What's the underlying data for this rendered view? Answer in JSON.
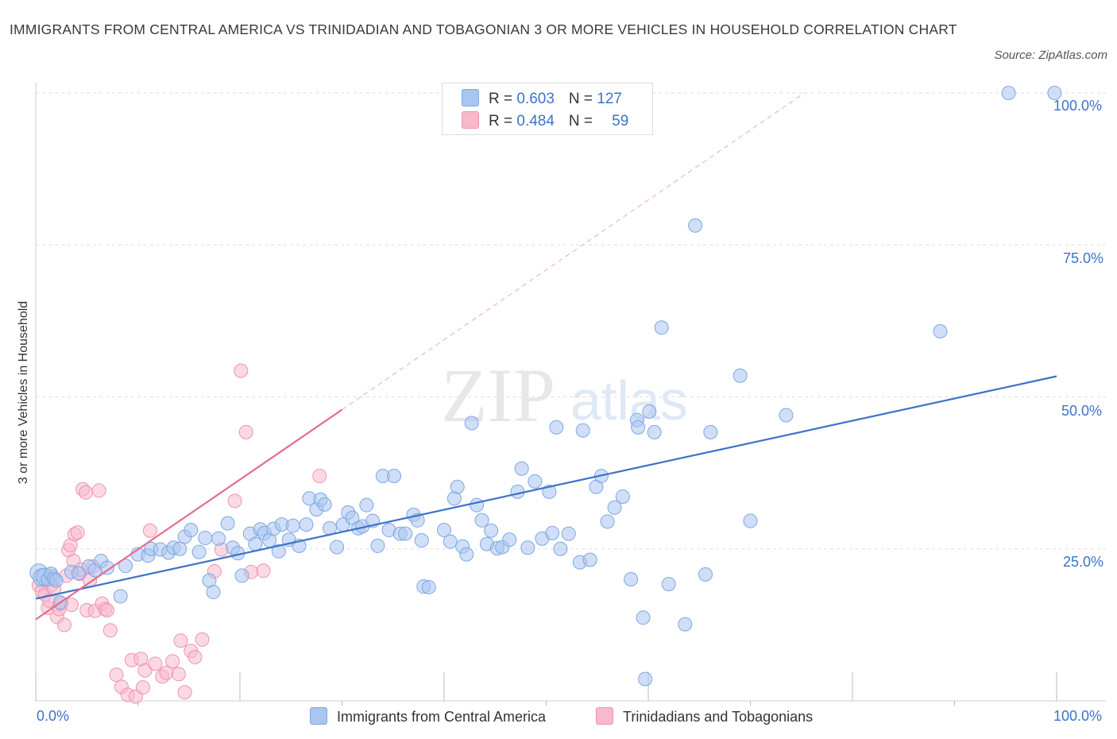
{
  "header": {
    "title": "IMMIGRANTS FROM CENTRAL AMERICA VS TRINIDADIAN AND TOBAGONIAN 3 OR MORE VEHICLES IN HOUSEHOLD CORRELATION CHART",
    "source": "Source: ZipAtlas.com"
  },
  "legend": {
    "blue": {
      "r_label": "R = ",
      "r_value": "0.603",
      "n_label": "N = ",
      "n_value": "127",
      "name": "Immigrants from Central America"
    },
    "pink": {
      "r_label": "R = ",
      "r_value": "0.484",
      "n_label": "N = ",
      "n_value": "59",
      "name": "Trinidadians and Tobagonians"
    }
  },
  "watermark": {
    "zip": "ZIP",
    "atlas": "atlas"
  },
  "colors": {
    "blue": "#3b73c8",
    "blue_fill": "#a9c5f0",
    "blue_stroke": "#7ea7e3",
    "pink": "#e26b93",
    "pink_fill": "#f7b9cc",
    "pink_stroke": "#ef93b0",
    "grid": "#dddddd",
    "axis_label": "#3b73c8"
  },
  "chart_data": {
    "type": "scatter",
    "title": "IMMIGRANTS FROM CENTRAL AMERICA VS TRINIDADIAN AND TOBAGONIAN 3 OR MORE VEHICLES IN HOUSEHOLD CORRELATION CHART",
    "xlabel": "",
    "ylabel": "3 or more Vehicles in Household",
    "xlim": [
      0,
      100
    ],
    "ylim": [
      0,
      100
    ],
    "x_tick_labels": [
      "0.0%",
      "100.0%"
    ],
    "y_tick_labels": [
      "25.0%",
      "50.0%",
      "75.0%",
      "100.0%"
    ],
    "y_ticks": [
      25,
      50,
      75,
      100
    ],
    "grid": true,
    "legend_position": "top-center",
    "series": [
      {
        "name": "Immigrants from Central America",
        "color": "#3b73c8",
        "trend": {
          "x": [
            0,
            100
          ],
          "y": [
            16.8,
            53.4
          ]
        },
        "points": [
          [
            0.3,
            21.1
          ],
          [
            0.6,
            20.3
          ],
          [
            0.9,
            20.4
          ],
          [
            1.2,
            20.0
          ],
          [
            1.5,
            20.9
          ],
          [
            1.8,
            20.1
          ],
          [
            2.0,
            19.8
          ],
          [
            2.4,
            16.2
          ],
          [
            3.5,
            21.2
          ],
          [
            4.2,
            21.0
          ],
          [
            5.2,
            22.1
          ],
          [
            5.8,
            21.5
          ],
          [
            6.4,
            23.0
          ],
          [
            7.0,
            21.9
          ],
          [
            8.8,
            22.2
          ],
          [
            8.3,
            17.2
          ],
          [
            10.0,
            24.1
          ],
          [
            11.0,
            23.9
          ],
          [
            11.3,
            25.0
          ],
          [
            12.2,
            24.9
          ],
          [
            13.0,
            24.4
          ],
          [
            13.5,
            25.2
          ],
          [
            14.1,
            25.0
          ],
          [
            14.6,
            27.0
          ],
          [
            15.2,
            28.1
          ],
          [
            16.0,
            24.5
          ],
          [
            16.6,
            26.8
          ],
          [
            17.0,
            19.8
          ],
          [
            17.4,
            17.9
          ],
          [
            17.9,
            26.7
          ],
          [
            18.8,
            29.2
          ],
          [
            19.3,
            25.2
          ],
          [
            19.8,
            24.3
          ],
          [
            20.2,
            20.6
          ],
          [
            21.0,
            27.5
          ],
          [
            21.5,
            25.8
          ],
          [
            22.0,
            28.2
          ],
          [
            22.4,
            27.6
          ],
          [
            22.9,
            26.4
          ],
          [
            23.3,
            28.3
          ],
          [
            23.8,
            24.6
          ],
          [
            24.1,
            29.0
          ],
          [
            24.8,
            26.5
          ],
          [
            25.2,
            28.8
          ],
          [
            25.8,
            25.5
          ],
          [
            26.5,
            29.0
          ],
          [
            26.8,
            33.3
          ],
          [
            27.5,
            31.5
          ],
          [
            27.9,
            33.1
          ],
          [
            28.3,
            32.3
          ],
          [
            28.8,
            28.4
          ],
          [
            29.5,
            25.3
          ],
          [
            30.1,
            29.0
          ],
          [
            30.6,
            31.0
          ],
          [
            31.0,
            30.1
          ],
          [
            31.6,
            28.4
          ],
          [
            32.0,
            28.7
          ],
          [
            32.4,
            32.2
          ],
          [
            33.0,
            29.6
          ],
          [
            33.5,
            25.5
          ],
          [
            34.0,
            37.0
          ],
          [
            34.6,
            28.1
          ],
          [
            35.1,
            37.0
          ],
          [
            35.7,
            27.5
          ],
          [
            36.2,
            27.5
          ],
          [
            37.0,
            30.6
          ],
          [
            37.4,
            29.7
          ],
          [
            37.8,
            26.4
          ],
          [
            38.0,
            18.8
          ],
          [
            38.5,
            18.7
          ],
          [
            40.0,
            28.1
          ],
          [
            40.6,
            26.2
          ],
          [
            41.0,
            33.3
          ],
          [
            41.3,
            35.2
          ],
          [
            41.8,
            25.4
          ],
          [
            42.2,
            24.1
          ],
          [
            42.7,
            45.7
          ],
          [
            43.2,
            32.2
          ],
          [
            43.7,
            29.7
          ],
          [
            44.2,
            25.8
          ],
          [
            44.6,
            28.0
          ],
          [
            45.2,
            25.1
          ],
          [
            45.7,
            25.3
          ],
          [
            46.4,
            26.5
          ],
          [
            47.2,
            34.4
          ],
          [
            47.6,
            38.2
          ],
          [
            48.2,
            25.2
          ],
          [
            48.9,
            36.1
          ],
          [
            49.6,
            26.7
          ],
          [
            50.3,
            34.4
          ],
          [
            50.6,
            27.6
          ],
          [
            51.0,
            45.0
          ],
          [
            51.4,
            25.0
          ],
          [
            52.2,
            27.5
          ],
          [
            53.3,
            22.8
          ],
          [
            53.6,
            44.5
          ],
          [
            54.3,
            23.2
          ],
          [
            54.9,
            35.2
          ],
          [
            55.4,
            37.0
          ],
          [
            56.0,
            29.5
          ],
          [
            56.7,
            31.8
          ],
          [
            57.5,
            33.6
          ],
          [
            58.3,
            20.0
          ],
          [
            58.9,
            46.2
          ],
          [
            59.0,
            45.0
          ],
          [
            59.5,
            13.7
          ],
          [
            60.1,
            47.6
          ],
          [
            60.6,
            44.2
          ],
          [
            61.3,
            61.4
          ],
          [
            62.0,
            19.2
          ],
          [
            63.6,
            12.6
          ],
          [
            64.6,
            78.2
          ],
          [
            65.6,
            20.8
          ],
          [
            66.1,
            44.2
          ],
          [
            69.0,
            53.5
          ],
          [
            70.0,
            29.6
          ],
          [
            73.5,
            47.0
          ],
          [
            88.6,
            60.8
          ],
          [
            95.3,
            100
          ],
          [
            99.8,
            100
          ],
          [
            59.7,
            3.6
          ]
        ]
      },
      {
        "name": "Trinidadians and Tobagonians",
        "color": "#e26b93",
        "trend": {
          "x": [
            0,
            30
          ],
          "y": [
            13.4,
            47.9
          ]
        },
        "points": [
          [
            0.3,
            19.0
          ],
          [
            0.6,
            18.0
          ],
          [
            0.9,
            17.5
          ],
          [
            1.2,
            15.3
          ],
          [
            1.3,
            16.5
          ],
          [
            1.5,
            19.0
          ],
          [
            1.6,
            20.5
          ],
          [
            1.8,
            18.4
          ],
          [
            2.1,
            13.8
          ],
          [
            2.3,
            15.1
          ],
          [
            2.5,
            16.0
          ],
          [
            2.8,
            12.5
          ],
          [
            3.0,
            20.6
          ],
          [
            3.2,
            24.8
          ],
          [
            3.4,
            25.6
          ],
          [
            3.5,
            15.8
          ],
          [
            3.7,
            23.0
          ],
          [
            3.8,
            27.4
          ],
          [
            4.1,
            27.7
          ],
          [
            4.3,
            20.9
          ],
          [
            4.4,
            21.6
          ],
          [
            4.6,
            34.8
          ],
          [
            4.9,
            34.3
          ],
          [
            5.0,
            14.9
          ],
          [
            5.3,
            19.8
          ],
          [
            5.6,
            22.1
          ],
          [
            5.8,
            14.8
          ],
          [
            6.2,
            34.6
          ],
          [
            6.5,
            16.0
          ],
          [
            6.8,
            15.1
          ],
          [
            7.0,
            14.9
          ],
          [
            7.3,
            11.6
          ],
          [
            7.9,
            4.3
          ],
          [
            8.4,
            2.3
          ],
          [
            9.0,
            1.0
          ],
          [
            9.4,
            6.7
          ],
          [
            9.8,
            0.7
          ],
          [
            10.3,
            6.9
          ],
          [
            10.5,
            2.2
          ],
          [
            10.7,
            5.0
          ],
          [
            11.2,
            28.0
          ],
          [
            11.7,
            6.1
          ],
          [
            12.4,
            4.0
          ],
          [
            12.8,
            4.6
          ],
          [
            13.4,
            6.5
          ],
          [
            14.0,
            4.4
          ],
          [
            14.2,
            9.9
          ],
          [
            14.6,
            1.4
          ],
          [
            15.2,
            8.2
          ],
          [
            15.6,
            7.2
          ],
          [
            16.3,
            10.1
          ],
          [
            17.5,
            21.3
          ],
          [
            18.2,
            24.9
          ],
          [
            19.5,
            32.9
          ],
          [
            20.1,
            54.3
          ],
          [
            20.6,
            44.2
          ],
          [
            21.1,
            21.2
          ],
          [
            22.3,
            21.4
          ],
          [
            27.8,
            37.0
          ]
        ]
      }
    ]
  }
}
